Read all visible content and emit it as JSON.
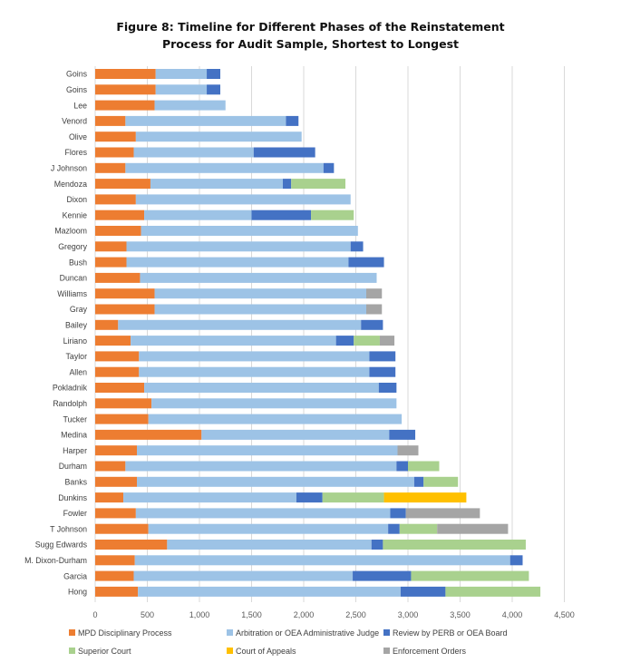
{
  "title_line1": "Figure 8: Timeline for Different Phases of the Reinstatement",
  "title_line2": "Process for Audit Sample, Shortest to Longest",
  "chart_data": {
    "type": "bar",
    "orientation": "horizontal",
    "stacked": true,
    "title": "Figure 8: Timeline for Different Phases of the Reinstatement Process for Audit Sample, Shortest to Longest",
    "xlim": [
      0,
      4500
    ],
    "xticks": [
      0,
      500,
      1000,
      1500,
      2000,
      2500,
      3000,
      3500,
      4000,
      4500
    ],
    "xtick_labels": [
      "0",
      "500",
      "1,000",
      "1,500",
      "2,000",
      "2,500",
      "3,000",
      "3,500",
      "4,000",
      "4,500"
    ],
    "grid": true,
    "legend_position": "bottom",
    "categories": [
      "Goins",
      "Goins",
      "Lee",
      "Venord",
      "Olive",
      "Flores",
      "J Johnson",
      "Mendoza",
      "Dixon",
      "Kennie",
      "Mazloom",
      "Gregory",
      "Bush",
      "Duncan",
      "Williams",
      "Gray",
      "Bailey",
      "Liriano",
      "Taylor",
      "Allen",
      "Pokladnik",
      "Randolph",
      "Tucker",
      "Medina",
      "Harper",
      "Durham",
      "Banks",
      "Dunkins",
      "Fowler",
      "T Johnson",
      "Sugg Edwards",
      "M. Dixon-Durham",
      "Garcia",
      "Hong"
    ],
    "series": [
      {
        "name": "MPD Disciplinary Process",
        "color": "#ED7D31",
        "values": [
          580,
          580,
          570,
          290,
          390,
          370,
          290,
          530,
          390,
          470,
          440,
          300,
          300,
          430,
          570,
          570,
          220,
          340,
          420,
          420,
          470,
          540,
          510,
          1020,
          400,
          290,
          400,
          270,
          390,
          510,
          690,
          380,
          370,
          410
        ]
      },
      {
        "name": "Arbitration or OEA Administrative Judge",
        "color": "#9DC3E6",
        "values": [
          490,
          490,
          680,
          1540,
          1590,
          1150,
          1900,
          1270,
          2060,
          1030,
          2080,
          2150,
          2130,
          2270,
          2030,
          2030,
          2330,
          1970,
          2210,
          2210,
          2250,
          2350,
          2430,
          1800,
          2500,
          2600,
          2660,
          1660,
          2440,
          2300,
          1960,
          3600,
          2100,
          2520
        ]
      },
      {
        "name": "Review by PERB or OEA Board",
        "color": "#4472C4",
        "values": [
          130,
          130,
          0,
          120,
          0,
          590,
          100,
          80,
          0,
          570,
          0,
          120,
          340,
          0,
          0,
          0,
          210,
          170,
          250,
          250,
          170,
          0,
          0,
          250,
          0,
          110,
          90,
          250,
          150,
          110,
          110,
          120,
          560,
          430
        ]
      },
      {
        "name": "Superior Court",
        "color": "#A9D18E",
        "values": [
          0,
          0,
          0,
          0,
          0,
          0,
          0,
          520,
          0,
          410,
          0,
          0,
          0,
          0,
          0,
          0,
          0,
          250,
          0,
          0,
          0,
          0,
          0,
          0,
          0,
          300,
          330,
          590,
          0,
          360,
          1370,
          0,
          1130,
          910
        ]
      },
      {
        "name": "Court of Appeals",
        "color": "#FFC000",
        "values": [
          0,
          0,
          0,
          0,
          0,
          0,
          0,
          0,
          0,
          0,
          0,
          0,
          0,
          0,
          0,
          0,
          0,
          0,
          0,
          0,
          0,
          0,
          0,
          0,
          0,
          0,
          0,
          790,
          0,
          0,
          0,
          0,
          0,
          0
        ]
      },
      {
        "name": "Enforcement Orders",
        "color": "#A5A5A5",
        "values": [
          0,
          0,
          0,
          0,
          0,
          0,
          0,
          0,
          0,
          0,
          0,
          0,
          0,
          0,
          150,
          150,
          0,
          140,
          0,
          0,
          0,
          0,
          0,
          0,
          200,
          0,
          0,
          0,
          710,
          680,
          0,
          0,
          0,
          0
        ]
      }
    ]
  }
}
